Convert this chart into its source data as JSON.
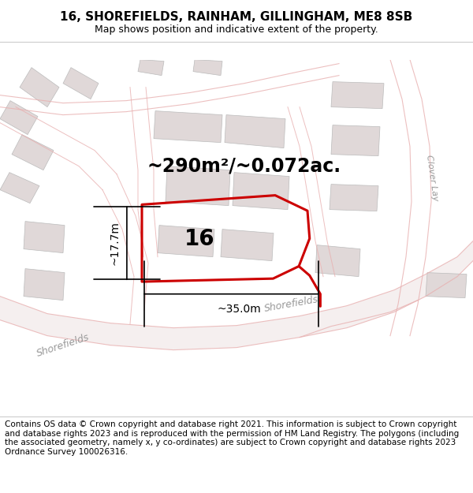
{
  "title": "16, SHOREFIELDS, RAINHAM, GILLINGHAM, ME8 8SB",
  "subtitle": "Map shows position and indicative extent of the property.",
  "footer": "Contains OS data © Crown copyright and database right 2021. This information is subject to Crown copyright and database rights 2023 and is reproduced with the permission of HM Land Registry. The polygons (including the associated geometry, namely x, y co-ordinates) are subject to Crown copyright and database rights 2023 Ordnance Survey 100026316.",
  "area_label": "~290m²/~0.072ac.",
  "number_label": "16",
  "dim_width": "~35.0m",
  "dim_height": "~17.7m",
  "road_label_shorefields_1": "Shorefields",
  "road_label_shorefields_2": "Shorefields",
  "clover_label": "Clover Lay",
  "bg_color": "#ffffff",
  "map_bg": "#f7f3f3",
  "building_fill": "#e0d8d8",
  "building_stroke": "#bbbbbb",
  "road_stroke": "#e8b0b0",
  "plot_stroke": "#cc0000",
  "title_fontsize": 11,
  "subtitle_fontsize": 9,
  "footer_fontsize": 7.5,
  "area_label_fontsize": 17,
  "number_label_fontsize": 20,
  "dim_label_fontsize": 10,
  "road_label_fontsize": 9
}
